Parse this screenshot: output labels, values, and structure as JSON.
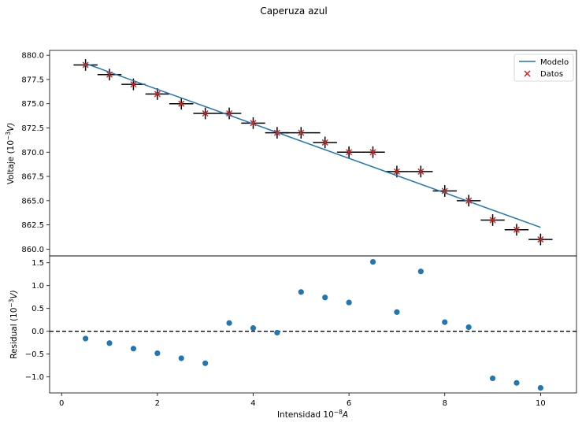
{
  "chart_data": [
    {
      "type": "line+scatter",
      "title": "Caperuza azul",
      "xlabel": "",
      "ylabel_prefix": "Voltaje (10",
      "ylabel_exp": "−3",
      "ylabel_suffix": "V)",
      "xlim": [
        -0.25,
        10.75
      ],
      "ylim": [
        859.3,
        880.5
      ],
      "yticks": [
        860.0,
        862.5,
        865.0,
        867.5,
        870.0,
        872.5,
        875.0,
        877.5,
        880.0
      ],
      "ytick_labels": [
        "860.0",
        "862.5",
        "865.0",
        "867.5",
        "870.0",
        "872.5",
        "875.0",
        "877.5",
        "880.0"
      ],
      "legend": {
        "position": "top-right",
        "entries": [
          "Modelo",
          "Datos"
        ]
      },
      "colors": {
        "model": "#1f77b4",
        "data": "#d62728",
        "errorbar": "#000000"
      },
      "model_line": {
        "name": "Modelo",
        "x": [
          0.5,
          10.0
        ],
        "y": [
          879.15,
          862.25
        ]
      },
      "data": {
        "name": "Datos",
        "x": [
          0.5,
          1.0,
          1.5,
          2.0,
          2.5,
          3.0,
          3.5,
          4.0,
          4.5,
          5.0,
          5.5,
          6.0,
          6.5,
          7.0,
          7.5,
          8.0,
          8.5,
          9.0,
          9.5,
          10.0
        ],
        "y": [
          879,
          878,
          877,
          876,
          875,
          874,
          874,
          873,
          872,
          872,
          871,
          870,
          870,
          868,
          868,
          866,
          865,
          863,
          862,
          861
        ],
        "xerr": [
          0.25,
          0.25,
          0.25,
          0.25,
          0.25,
          0.25,
          0.25,
          0.25,
          0.25,
          0.4,
          0.25,
          0.25,
          0.25,
          0.25,
          0.25,
          0.25,
          0.25,
          0.25,
          0.25,
          0.25
        ],
        "yerr": [
          0.6,
          0.6,
          0.6,
          0.6,
          0.6,
          0.6,
          0.6,
          0.6,
          0.6,
          0.6,
          0.6,
          0.6,
          0.6,
          0.6,
          0.6,
          0.6,
          0.6,
          0.6,
          0.6,
          0.6
        ]
      }
    },
    {
      "type": "scatter",
      "xlabel_prefix": "Intensidad 10",
      "xlabel_exp": "−8",
      "xlabel_suffix": "A",
      "ylabel_prefix": "Residual (10",
      "ylabel_exp": "−3",
      "ylabel_suffix": "V)",
      "xlim": [
        -0.25,
        10.75
      ],
      "ylim": [
        -1.35,
        1.65
      ],
      "xticks": [
        0,
        2,
        4,
        6,
        8,
        10
      ],
      "xtick_labels": [
        "0",
        "2",
        "4",
        "6",
        "8",
        "10"
      ],
      "yticks": [
        -1.0,
        -0.5,
        0.0,
        0.5,
        1.0,
        1.5
      ],
      "ytick_labels": [
        "−1.0",
        "−0.5",
        "0.0",
        "0.5",
        "1.0",
        "1.5"
      ],
      "zero_line": 0.0,
      "colors": {
        "points": "#1f77b4",
        "zero_line": "#000000"
      },
      "x": [
        0.5,
        1.0,
        1.5,
        2.0,
        2.5,
        3.0,
        3.5,
        4.0,
        4.5,
        5.0,
        5.5,
        6.0,
        6.5,
        7.0,
        7.5,
        8.0,
        8.5,
        9.0,
        9.5,
        10.0
      ],
      "y": [
        -0.16,
        -0.26,
        -0.38,
        -0.48,
        -0.59,
        -0.7,
        0.18,
        0.07,
        -0.03,
        0.86,
        0.74,
        0.63,
        1.52,
        0.42,
        1.31,
        0.2,
        0.09,
        -1.03,
        -1.13,
        -1.24
      ]
    }
  ]
}
